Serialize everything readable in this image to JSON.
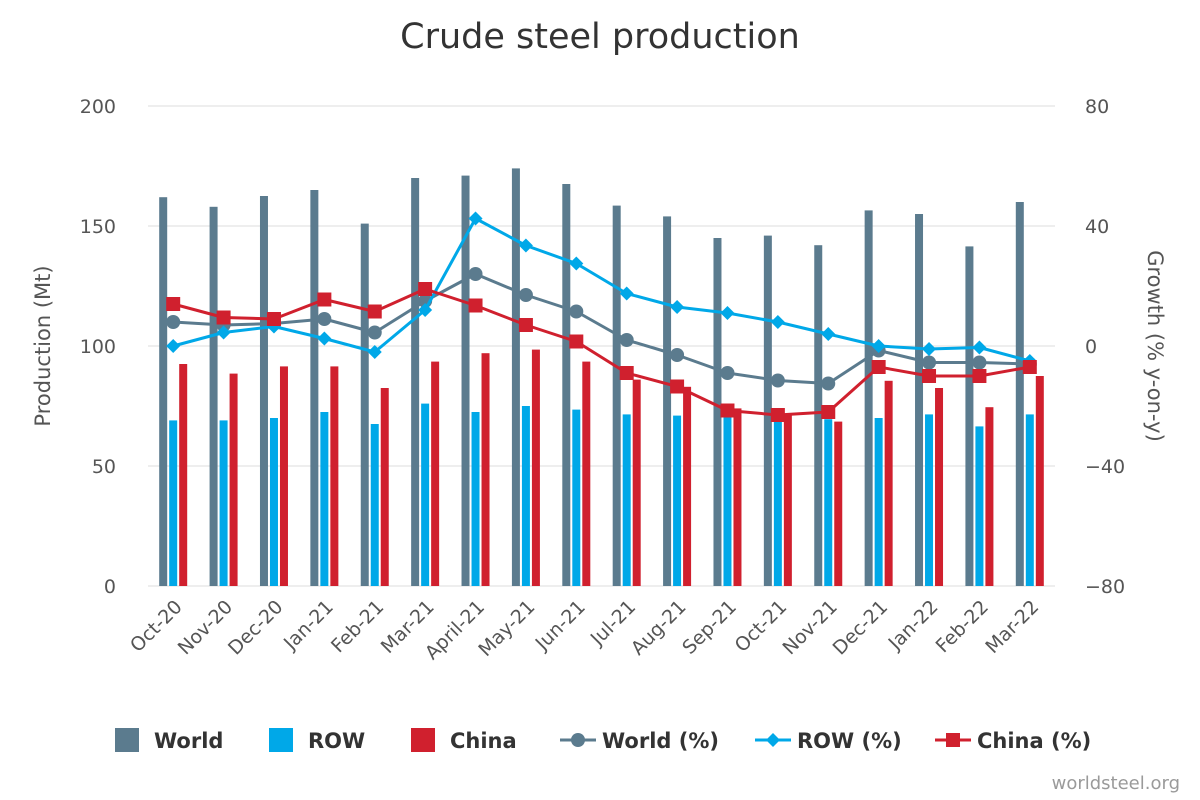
{
  "chart_data": {
    "type": "bar",
    "title": "Crude steel production",
    "ylabel": "Production (Mt)",
    "y2label": "Growth (% y-on-y)",
    "ylim": [
      0,
      200
    ],
    "y2lim": [
      -80,
      80
    ],
    "yticks": [
      "0",
      "50",
      "100",
      "150",
      "200"
    ],
    "y2ticks": [
      "−80",
      "−40",
      "0",
      "40",
      "80"
    ],
    "grid": true,
    "legend_position": "bottom",
    "categories": [
      "Oct-20",
      "Nov-20",
      "Dec-20",
      "Jan-21",
      "Feb-21",
      "Mar-21",
      "April-21",
      "May-21",
      "Jun-21",
      "Jul-21",
      "Aug-21",
      "Sep-21",
      "Oct-21",
      "Nov-21",
      "Dec-21",
      "Jan-22",
      "Feb-22",
      "Mar-22"
    ],
    "series": [
      {
        "name": "World",
        "kind": "bar",
        "axis": "left",
        "color": "#5b7b8e",
        "values": [
          162,
          158,
          162.5,
          165,
          151,
          170,
          171,
          174,
          167.5,
          158.5,
          154,
          145,
          146,
          142,
          156.5,
          155,
          141.5,
          160
        ]
      },
      {
        "name": "ROW",
        "kind": "bar",
        "axis": "left",
        "color": "#00a8e8",
        "values": [
          69,
          69,
          70,
          72.5,
          67.5,
          76,
          72.5,
          75,
          73.5,
          71.5,
          71,
          71,
          69.5,
          69.5,
          70,
          71.5,
          66.5,
          71.5
        ]
      },
      {
        "name": "China",
        "kind": "bar",
        "axis": "left",
        "color": "#d0202e",
        "values": [
          92.5,
          88.5,
          91.5,
          91.5,
          82.5,
          93.5,
          97,
          98.5,
          93.5,
          86,
          83,
          74,
          71.5,
          68.5,
          85.5,
          82.5,
          74.5,
          87.5
        ]
      },
      {
        "name": "World (%)",
        "kind": "line",
        "axis": "right",
        "color": "#5b7b8e",
        "marker": "circle",
        "values": [
          8,
          7,
          7.5,
          9,
          4.5,
          15,
          24,
          17,
          11.5,
          2,
          -3,
          -9,
          -11.5,
          -12.5,
          -1.5,
          -5.5,
          -5.5,
          -6
        ]
      },
      {
        "name": "ROW (%)",
        "kind": "line",
        "axis": "right",
        "color": "#00a8e8",
        "marker": "diamond",
        "values": [
          0,
          4.5,
          6.5,
          2.5,
          -2,
          12,
          42.5,
          33.5,
          27.5,
          17.5,
          13,
          11,
          8,
          4,
          0,
          -1,
          -0.5,
          -5
        ]
      },
      {
        "name": "China (%)",
        "kind": "line",
        "axis": "right",
        "color": "#d0202e",
        "marker": "square",
        "values": [
          14,
          9.5,
          9,
          15.5,
          11.5,
          19,
          13.5,
          7,
          1.5,
          -9,
          -13.5,
          -21.5,
          -23,
          -22,
          -7,
          -10,
          -10,
          -7
        ]
      }
    ]
  },
  "legend": [
    {
      "label": "World",
      "symbol": "bar",
      "color": "#5b7b8e"
    },
    {
      "label": "ROW",
      "symbol": "bar",
      "color": "#00a8e8"
    },
    {
      "label": "China",
      "symbol": "bar",
      "color": "#d0202e"
    },
    {
      "label": "World (%)",
      "symbol": "circle",
      "color": "#5b7b8e"
    },
    {
      "label": "ROW (%)",
      "symbol": "diamond",
      "color": "#00a8e8"
    },
    {
      "label": "China (%)",
      "symbol": "square",
      "color": "#d0202e"
    }
  ],
  "credit": "worldsteel.org"
}
